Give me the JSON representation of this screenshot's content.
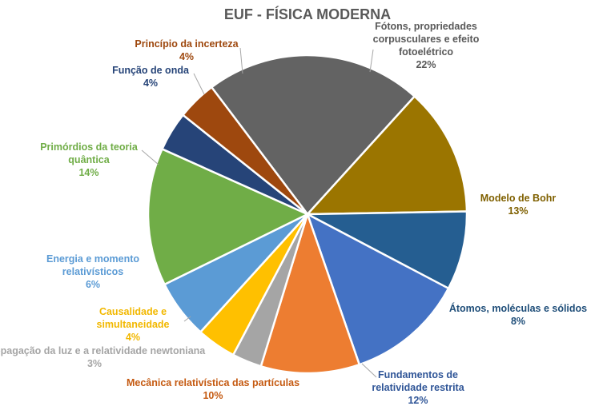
{
  "chart_data": {
    "type": "pie",
    "title": "EUF - FÍSICA MODERNA",
    "slices": [
      {
        "label": "Fótons, propriedades corpusculares e efeito fotoelétrico",
        "lines": [
          "Fótons, propriedades",
          "corpusculares e efeito",
          "fotoelétrico"
        ],
        "pct_label": "22%",
        "value": 22,
        "color": "#636363"
      },
      {
        "label": "Modelo de Bohr",
        "lines": [
          "Modelo de Bohr"
        ],
        "pct_label": "13%",
        "value": 13,
        "color": "#9B7500"
      },
      {
        "label": "Átomos, moléculas e sólidos",
        "lines": [
          "Átomos, moléculas e sólidos"
        ],
        "pct_label": "8%",
        "value": 8,
        "color": "#255E91"
      },
      {
        "label": "Fundamentos de relatividade restrita",
        "lines": [
          "Fundamentos de",
          "relatividade restrita"
        ],
        "pct_label": "12%",
        "value": 12,
        "color": "#4472C4"
      },
      {
        "label": "Mecânica relativística das partículas",
        "lines": [
          "Mecânica relativística das partículas"
        ],
        "pct_label": "10%",
        "value": 10,
        "color": "#ED7D31"
      },
      {
        "label": "Propagação da luz e a relatividade newtoniana",
        "lines": [
          "Propagação da luz e a relatividade newtoniana"
        ],
        "pct_label": "3%",
        "value": 3,
        "color": "#A5A5A5"
      },
      {
        "label": "Causalidade e simultaneidade",
        "lines": [
          "Causalidade e",
          "simultaneidade"
        ],
        "pct_label": "4%",
        "value": 4,
        "color": "#FFC000"
      },
      {
        "label": "Energia e momento relativísticos",
        "lines": [
          "Energia e momento",
          "relativísticos"
        ],
        "pct_label": "6%",
        "value": 6,
        "color": "#5B9BD5"
      },
      {
        "label": "Primórdios da teoria quântica",
        "lines": [
          "Primórdios da teoria",
          "quântica"
        ],
        "pct_label": "14%",
        "value": 14,
        "color": "#70AD47"
      },
      {
        "label": "Função de onda",
        "lines": [
          "Função de onda"
        ],
        "pct_label": "4%",
        "value": 4,
        "color": "#264478"
      },
      {
        "label": "Princípio da incerteza",
        "lines": [
          "Princípio da incerteza"
        ],
        "pct_label": "4%",
        "value": 4,
        "color": "#9E480E"
      }
    ],
    "label_colors": [
      "#595959",
      "#7F6000",
      "#1F4E79",
      "#2F5597",
      "#C55A11",
      "#A5A5A5",
      "#F2B800",
      "#5B9BD5",
      "#70AD47",
      "#264478",
      "#9E480E"
    ],
    "start_angle_deg": -37,
    "direction": "clockwise",
    "legend": "none"
  }
}
